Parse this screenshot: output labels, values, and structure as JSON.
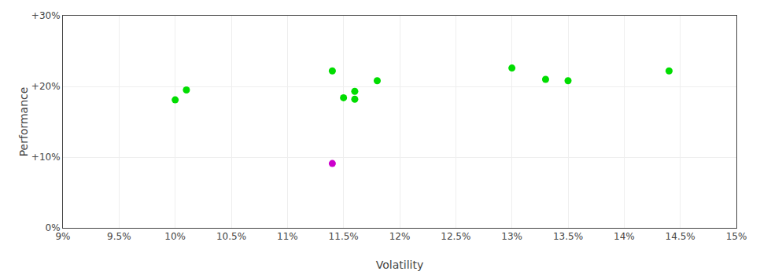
{
  "chart_data": {
    "type": "scatter",
    "xlabel": "Volatility",
    "ylabel": "Performance",
    "xlim": [
      0.09,
      0.15
    ],
    "ylim": [
      0.0,
      0.3
    ],
    "xticks": [
      {
        "value": 0.09,
        "label": "9%"
      },
      {
        "value": 0.095,
        "label": "9.5%"
      },
      {
        "value": 0.1,
        "label": "10%"
      },
      {
        "value": 0.105,
        "label": "10.5%"
      },
      {
        "value": 0.11,
        "label": "11%"
      },
      {
        "value": 0.115,
        "label": "11.5%"
      },
      {
        "value": 0.12,
        "label": "12%"
      },
      {
        "value": 0.125,
        "label": "12.5%"
      },
      {
        "value": 0.13,
        "label": "13%"
      },
      {
        "value": 0.135,
        "label": "13.5%"
      },
      {
        "value": 0.14,
        "label": "14%"
      },
      {
        "value": 0.145,
        "label": "14.5%"
      },
      {
        "value": 0.15,
        "label": "15%"
      }
    ],
    "yticks": [
      {
        "value": 0.0,
        "label": "0%"
      },
      {
        "value": 0.1,
        "label": "+10%"
      },
      {
        "value": 0.2,
        "label": "+20%"
      },
      {
        "value": 0.3,
        "label": "+30%"
      }
    ],
    "grid": true,
    "series": [
      {
        "color": "#00dd00",
        "x": [
          0.101,
          0.1,
          0.114,
          0.115,
          0.116,
          0.116,
          0.118,
          0.13,
          0.133,
          0.135,
          0.144
        ],
        "values": [
          0.195,
          0.181,
          0.222,
          0.184,
          0.182,
          0.193,
          0.208,
          0.226,
          0.21,
          0.208,
          0.222
        ]
      },
      {
        "color": "#cc00cc",
        "x": [
          0.114
        ],
        "values": [
          0.091
        ]
      }
    ]
  }
}
